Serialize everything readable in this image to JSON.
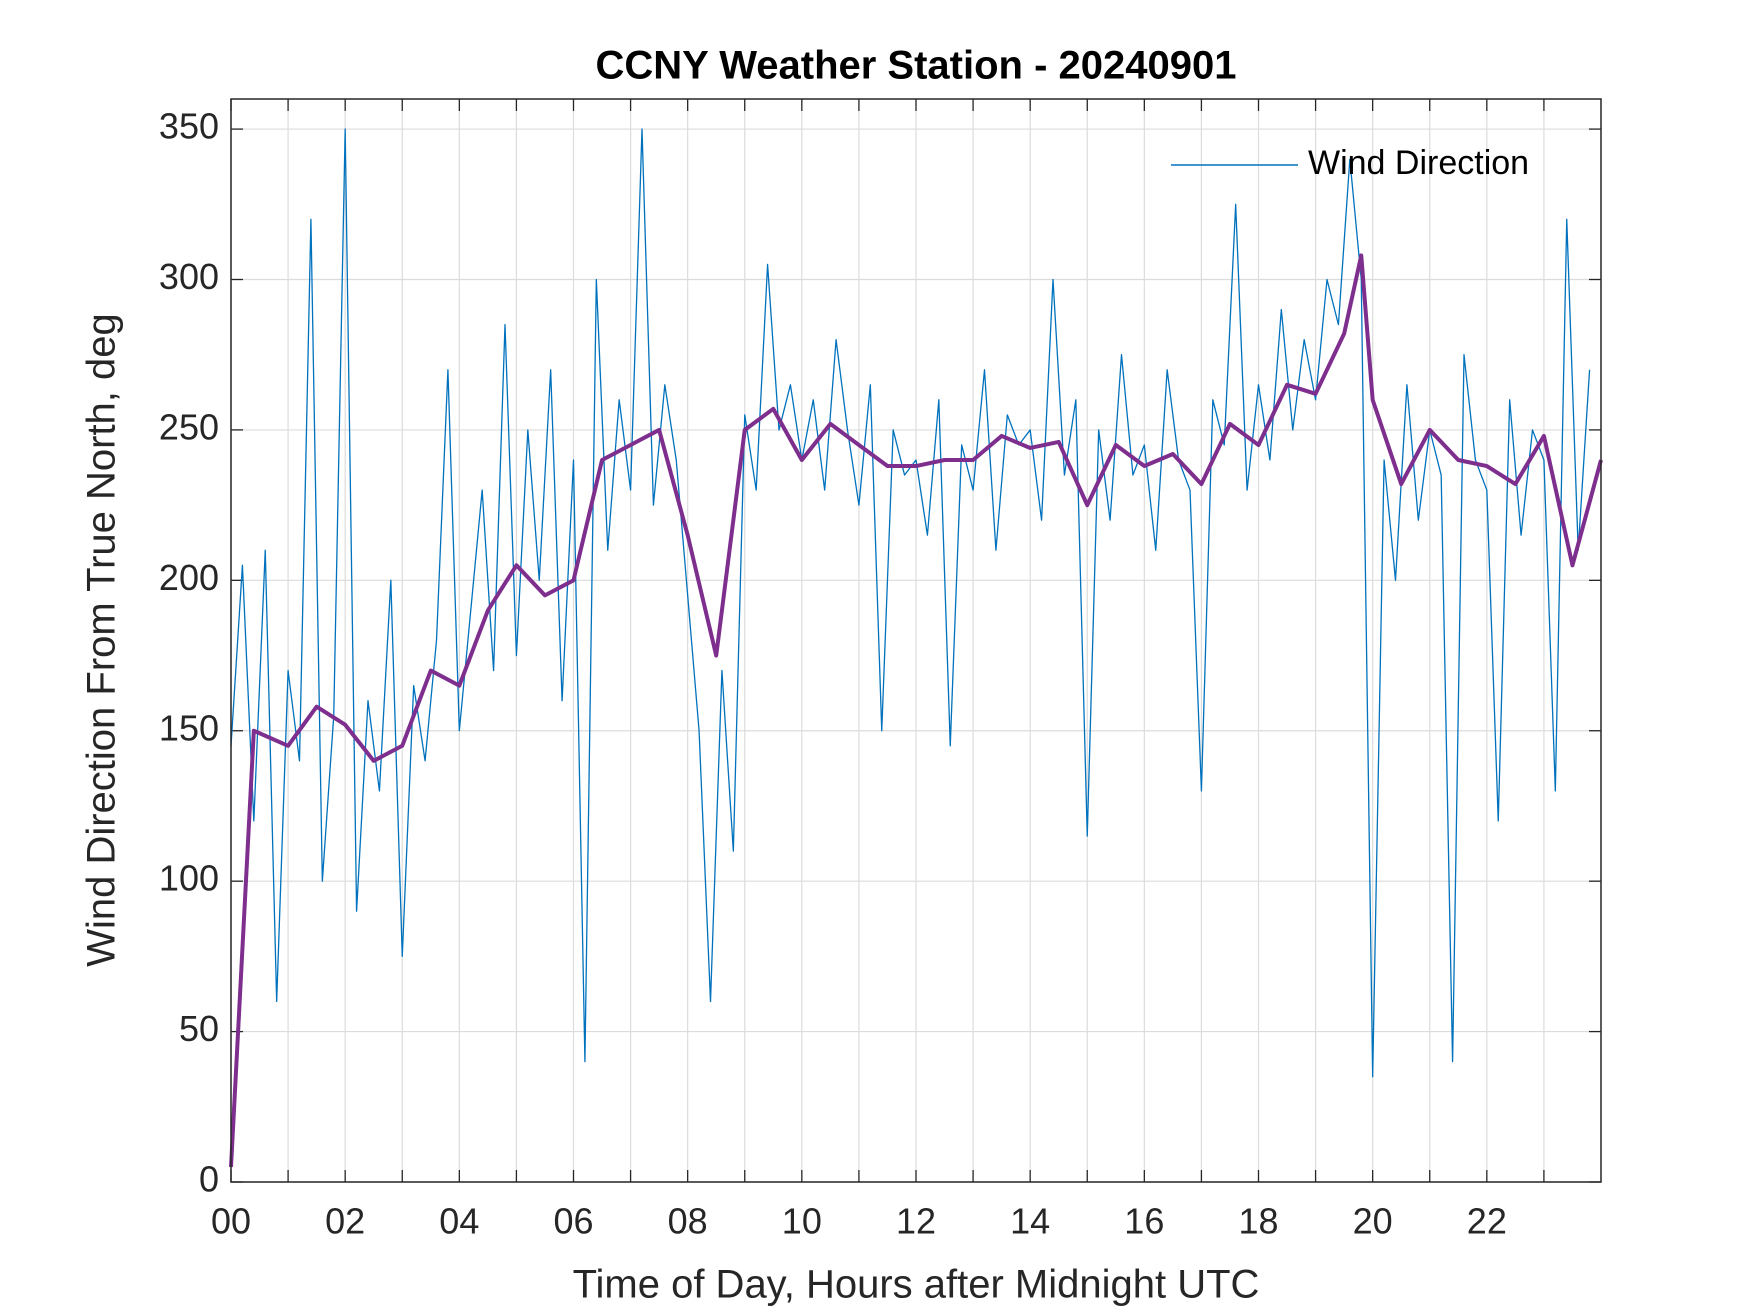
{
  "chart_data": {
    "type": "line",
    "title": "CCNY Weather Station - 20240901",
    "xlabel": "Time of Day, Hours after Midnight UTC",
    "ylabel": "Wind Direction From True North, deg",
    "xlim": [
      0,
      24
    ],
    "ylim": [
      0,
      360
    ],
    "xticks": [
      {
        "value": 0,
        "label": "00"
      },
      {
        "value": 2,
        "label": "02"
      },
      {
        "value": 4,
        "label": "04"
      },
      {
        "value": 6,
        "label": "06"
      },
      {
        "value": 8,
        "label": "08"
      },
      {
        "value": 10,
        "label": "10"
      },
      {
        "value": 12,
        "label": "12"
      },
      {
        "value": 14,
        "label": "14"
      },
      {
        "value": 16,
        "label": "16"
      },
      {
        "value": 18,
        "label": "18"
      },
      {
        "value": 20,
        "label": "20"
      },
      {
        "value": 22,
        "label": "22"
      }
    ],
    "xminorticks": [
      1,
      3,
      5,
      7,
      9,
      11,
      13,
      15,
      17,
      19,
      21,
      23
    ],
    "yticks": [
      0,
      50,
      100,
      150,
      200,
      250,
      300,
      350
    ],
    "grid": true,
    "legend": "northeast",
    "series": [
      {
        "name": "Wind Direction",
        "color": "#0072bd",
        "width": 1.3,
        "x": [
          0,
          0.2,
          0.4,
          0.6,
          0.8,
          1,
          1.2,
          1.4,
          1.6,
          1.8,
          2,
          2.2,
          2.4,
          2.6,
          2.8,
          3,
          3.2,
          3.4,
          3.6,
          3.8,
          4,
          4.2,
          4.4,
          4.6,
          4.8,
          5,
          5.2,
          5.4,
          5.6,
          5.8,
          6,
          6.2,
          6.4,
          6.6,
          6.8,
          7,
          7.2,
          7.4,
          7.6,
          7.8,
          8,
          8.2,
          8.4,
          8.6,
          8.8,
          9,
          9.2,
          9.4,
          9.6,
          9.8,
          10,
          10.2,
          10.4,
          10.6,
          10.8,
          11,
          11.2,
          11.4,
          11.6,
          11.8,
          12,
          12.2,
          12.4,
          12.6,
          12.8,
          13,
          13.2,
          13.4,
          13.6,
          13.8,
          14,
          14.2,
          14.4,
          14.6,
          14.8,
          15,
          15.2,
          15.4,
          15.6,
          15.8,
          16,
          16.2,
          16.4,
          16.6,
          16.8,
          17,
          17.2,
          17.4,
          17.6,
          17.8,
          18,
          18.2,
          18.4,
          18.6,
          18.8,
          19,
          19.2,
          19.4,
          19.6,
          19.8,
          20,
          20.2,
          20.4,
          20.6,
          20.8,
          21,
          21.2,
          21.4,
          21.6,
          21.8,
          22,
          22.2,
          22.4,
          22.6,
          22.8,
          23,
          23.2,
          23.4,
          23.6,
          23.8
        ],
        "values": [
          145,
          205,
          120,
          210,
          60,
          170,
          140,
          320,
          100,
          155,
          350,
          90,
          160,
          130,
          200,
          75,
          165,
          140,
          180,
          270,
          150,
          190,
          230,
          170,
          285,
          175,
          250,
          200,
          270,
          160,
          240,
          40,
          300,
          210,
          260,
          230,
          350,
          225,
          265,
          240,
          195,
          150,
          60,
          170,
          110,
          255,
          230,
          305,
          250,
          265,
          240,
          260,
          230,
          280,
          250,
          225,
          265,
          150,
          250,
          235,
          240,
          215,
          260,
          145,
          245,
          230,
          270,
          210,
          255,
          245,
          250,
          220,
          300,
          235,
          260,
          115,
          250,
          220,
          275,
          235,
          245,
          210,
          270,
          240,
          230,
          130,
          260,
          245,
          325,
          230,
          265,
          240,
          290,
          250,
          280,
          260,
          300,
          285,
          340,
          300,
          35,
          240,
          200,
          265,
          220,
          250,
          235,
          40,
          275,
          240,
          230,
          120,
          260,
          215,
          250,
          240,
          130,
          320,
          210,
          270
        ]
      },
      {
        "color": "#7e2f8e",
        "width": 4,
        "x": [
          0,
          0.4,
          1,
          1.5,
          2,
          2.5,
          3,
          3.5,
          4,
          4.5,
          5,
          5.5,
          6,
          6.5,
          7,
          7.5,
          8,
          8.5,
          9,
          9.5,
          10,
          10.5,
          11,
          11.5,
          12,
          12.5,
          13,
          13.5,
          14,
          14.5,
          15,
          15.5,
          16,
          16.5,
          17,
          17.5,
          18,
          18.5,
          19,
          19.5,
          19.8,
          20,
          20.5,
          21,
          21.5,
          22,
          22.5,
          23,
          23.5,
          24
        ],
        "values": [
          5,
          150,
          145,
          158,
          152,
          140,
          145,
          170,
          165,
          190,
          205,
          195,
          200,
          240,
          245,
          250,
          215,
          175,
          250,
          257,
          240,
          252,
          245,
          238,
          238,
          240,
          240,
          248,
          244,
          246,
          225,
          245,
          238,
          242,
          232,
          252,
          245,
          265,
          262,
          282,
          308,
          260,
          232,
          250,
          240,
          238,
          232,
          248,
          205,
          240
        ]
      }
    ]
  }
}
